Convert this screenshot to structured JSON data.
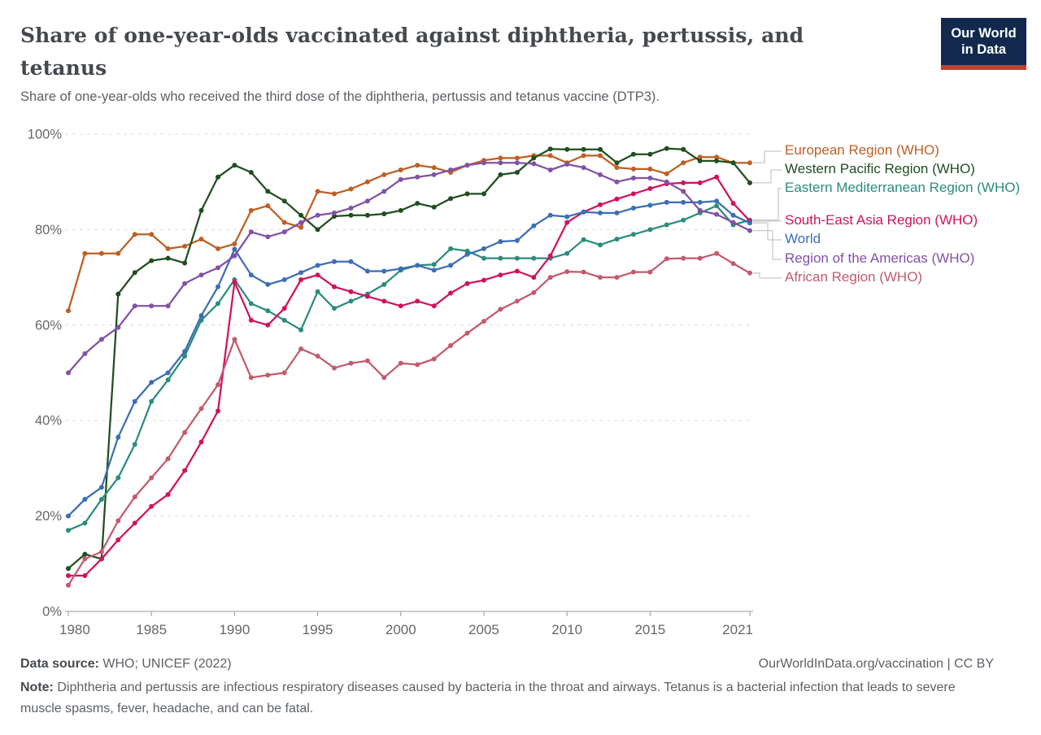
{
  "header": {
    "title": "Share of one-year-olds vaccinated against diphtheria, pertussis, and tetanus",
    "subtitle": "Share of one-year-olds who received the third dose of the diphtheria, pertussis and tetanus vaccine (DTP3).",
    "logo": {
      "line1": "Our World",
      "line2": "in Data"
    }
  },
  "chart_data": {
    "type": "line",
    "x": [
      1980,
      1981,
      1982,
      1983,
      1984,
      1985,
      1986,
      1987,
      1988,
      1989,
      1990,
      1991,
      1992,
      1993,
      1994,
      1995,
      1996,
      1997,
      1998,
      1999,
      2000,
      2001,
      2002,
      2003,
      2004,
      2005,
      2006,
      2007,
      2008,
      2009,
      2010,
      2011,
      2012,
      2013,
      2014,
      2015,
      2016,
      2017,
      2018,
      2019,
      2020,
      2021
    ],
    "x_ticks": [
      1980,
      1985,
      1990,
      1995,
      2000,
      2005,
      2010,
      2015,
      2021
    ],
    "x_tick_labels": [
      "1980",
      "1985",
      "1990",
      "1995",
      "2000",
      "2005",
      "2010",
      "2015",
      "2021"
    ],
    "y_ticks": [
      0,
      20,
      40,
      60,
      80,
      100
    ],
    "y_tick_suffix": "%",
    "ylim": [
      0,
      100
    ],
    "grid": true,
    "legend_position": "right",
    "series": [
      {
        "name": "European Region (WHO)",
        "color": "#be5f25",
        "values": [
          63,
          75,
          75,
          75,
          79,
          79,
          76,
          76.5,
          78,
          76,
          77,
          84,
          85,
          81.5,
          80.5,
          88,
          87.5,
          88.5,
          90,
          91.5,
          92.5,
          93.5,
          93,
          92,
          93.5,
          94.5,
          95,
          95,
          95.5,
          95.5,
          94,
          95.5,
          95.5,
          93,
          92.7,
          92.7,
          91.7,
          94,
          95.2,
          95.2,
          94,
          94
        ]
      },
      {
        "name": "Western Pacific Region (WHO)",
        "color": "#1f4e1f",
        "values": [
          9,
          12,
          11,
          66.5,
          71,
          73.5,
          74,
          73,
          84,
          91,
          93.5,
          92,
          88,
          86,
          83,
          80,
          82.8,
          83,
          83,
          83.3,
          84,
          85.5,
          84.7,
          86.5,
          87.5,
          87.5,
          91.5,
          92,
          95,
          96.9,
          96.8,
          96.8,
          96.8,
          94,
          95.8,
          95.8,
          97,
          96.8,
          94.4,
          94.4,
          94,
          89.8
        ]
      },
      {
        "name": "Eastern Mediterranean Region (WHO)",
        "color": "#2b8c7d",
        "values": [
          17,
          18.5,
          23.5,
          28,
          35,
          44,
          48.5,
          53.5,
          61,
          64.5,
          69.5,
          64.5,
          63,
          61,
          59,
          67,
          63.5,
          65,
          66.5,
          68.5,
          71.5,
          72.5,
          72.7,
          76,
          75.5,
          74,
          74,
          74,
          74,
          74,
          75,
          77.9,
          76.8,
          78,
          79,
          80,
          81,
          82,
          83.5,
          85,
          81,
          82
        ]
      },
      {
        "name": "South-East Asia Region (WHO)",
        "color": "#d0135e",
        "values": [
          7.5,
          7.5,
          11,
          15,
          18.5,
          22,
          24.5,
          29.5,
          35.5,
          42,
          69,
          61,
          60,
          63.5,
          69.5,
          70.5,
          68,
          67,
          66,
          65,
          64,
          65,
          64,
          66.7,
          68.7,
          69.4,
          70.5,
          71.3,
          70,
          74.5,
          81.5,
          83.7,
          85.2,
          86.4,
          87.5,
          88.6,
          89.6,
          89.8,
          89.8,
          91,
          85.5,
          81.8
        ]
      },
      {
        "name": "World",
        "color": "#3c6eb4",
        "values": [
          20,
          23.5,
          26,
          36.5,
          44,
          48,
          50,
          54.5,
          62,
          68,
          75.9,
          70.5,
          68.5,
          69.5,
          71,
          72.5,
          73.3,
          73.3,
          71.3,
          71.3,
          71.8,
          72.5,
          71.5,
          72.5,
          74.8,
          76,
          77.5,
          77.7,
          80.8,
          83,
          82.7,
          83.7,
          83.5,
          83.5,
          84.5,
          85.1,
          85.7,
          85.7,
          85.7,
          86,
          83,
          81.4
        ]
      },
      {
        "name": "Region of the Americas (WHO)",
        "color": "#8152a5",
        "values": [
          50,
          54,
          57,
          59.5,
          64,
          64,
          64,
          68.7,
          70.5,
          72,
          74.5,
          79.5,
          78.5,
          79.5,
          81.5,
          83,
          83.5,
          84.5,
          86,
          88,
          90.5,
          91,
          91.5,
          92.5,
          93.5,
          94,
          94,
          94,
          93.8,
          92.5,
          93.7,
          93,
          91.5,
          90,
          90.8,
          90.8,
          90,
          88,
          84,
          83.2,
          81.5,
          79.8
        ]
      },
      {
        "name": "African Region (WHO)",
        "color": "#c25b6e",
        "values": [
          5.5,
          11,
          12.5,
          19,
          24,
          28,
          32,
          37.5,
          42.5,
          47.5,
          57,
          49,
          49.5,
          50,
          55,
          53.5,
          51,
          52,
          52.5,
          49,
          52,
          51.7,
          52.9,
          55.7,
          58.3,
          60.8,
          63.3,
          65,
          66.8,
          70,
          71.2,
          71.1,
          70,
          70,
          71.1,
          71.1,
          73.9,
          74,
          74,
          75,
          72.9,
          70.9
        ]
      }
    ]
  },
  "footer": {
    "source_label": "Data source:",
    "source_value": "WHO; UNICEF (2022)",
    "link": "OurWorldInData.org/vaccination",
    "separator": "|",
    "license": "CC BY",
    "note_label": "Note:",
    "note_value": "Diphtheria and pertussis are infectious respiratory diseases caused by bacteria in the throat and airways. Tetanus is a bacterial infection that leads to severe muscle spasms, fever, headache, and can be fatal."
  }
}
